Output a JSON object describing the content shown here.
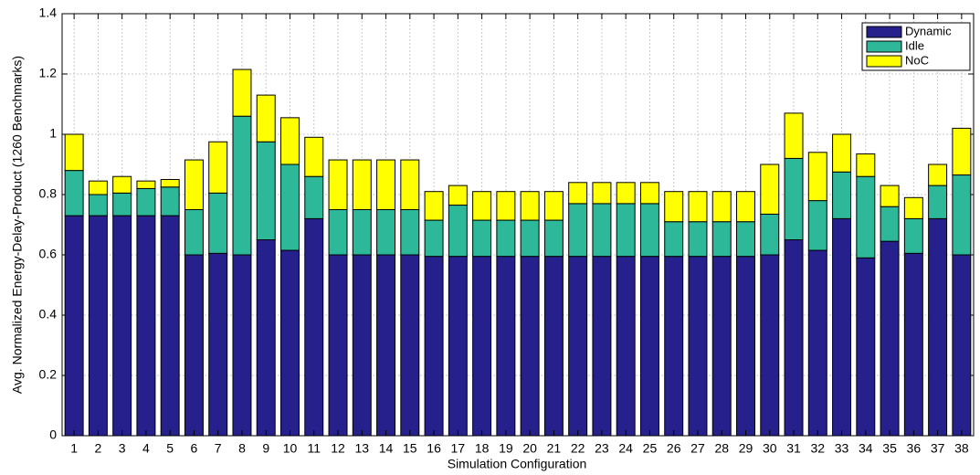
{
  "chart_data": {
    "type": "stacked_bar",
    "xlabel": "Simulation Configuration",
    "ylabel": "Avg. Normalized Energy-Delay-Product (1260 Benchmarks)",
    "categories": [
      "1",
      "2",
      "3",
      "4",
      "5",
      "6",
      "7",
      "8",
      "9",
      "10",
      "11",
      "12",
      "13",
      "14",
      "15",
      "16",
      "17",
      "18",
      "19",
      "20",
      "21",
      "22",
      "23",
      "24",
      "25",
      "26",
      "27",
      "28",
      "29",
      "30",
      "31",
      "32",
      "33",
      "34",
      "35",
      "36",
      "37",
      "38"
    ],
    "series": [
      {
        "name": "Dynamic",
        "color": "#25208c",
        "values": [
          0.73,
          0.73,
          0.73,
          0.73,
          0.73,
          0.6,
          0.605,
          0.6,
          0.65,
          0.615,
          0.72,
          0.6,
          0.6,
          0.6,
          0.6,
          0.595,
          0.595,
          0.595,
          0.595,
          0.595,
          0.595,
          0.595,
          0.595,
          0.595,
          0.595,
          0.595,
          0.595,
          0.595,
          0.595,
          0.6,
          0.65,
          0.615,
          0.72,
          0.59,
          0.645,
          0.605,
          0.72,
          0.6
        ]
      },
      {
        "name": "Idle",
        "color": "#2db89a",
        "values": [
          0.15,
          0.07,
          0.075,
          0.09,
          0.095,
          0.15,
          0.2,
          0.46,
          0.325,
          0.285,
          0.14,
          0.15,
          0.15,
          0.15,
          0.15,
          0.12,
          0.17,
          0.12,
          0.12,
          0.12,
          0.12,
          0.175,
          0.175,
          0.175,
          0.175,
          0.115,
          0.115,
          0.115,
          0.115,
          0.135,
          0.27,
          0.165,
          0.155,
          0.27,
          0.115,
          0.115,
          0.11,
          0.265
        ]
      },
      {
        "name": "NoC",
        "color": "#ffff00",
        "values": [
          0.12,
          0.045,
          0.055,
          0.025,
          0.025,
          0.165,
          0.17,
          0.155,
          0.155,
          0.155,
          0.13,
          0.165,
          0.165,
          0.165,
          0.165,
          0.095,
          0.065,
          0.095,
          0.095,
          0.095,
          0.095,
          0.07,
          0.07,
          0.07,
          0.07,
          0.1,
          0.1,
          0.1,
          0.1,
          0.165,
          0.15,
          0.16,
          0.125,
          0.075,
          0.07,
          0.07,
          0.07,
          0.155
        ]
      }
    ],
    "ylim": [
      0,
      1.4
    ],
    "yticks": [
      0,
      0.2,
      0.4,
      0.6,
      0.8,
      1,
      1.2,
      1.4
    ],
    "grid": true,
    "legend": "upper right"
  }
}
